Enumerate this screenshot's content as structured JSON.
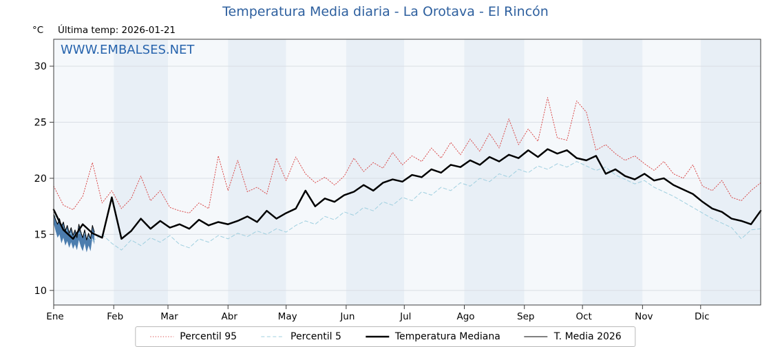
{
  "header": {
    "title": "Temperatura Media diaria - La Orotava - El Rincón",
    "y_unit": "°C",
    "last_temp_label": "Última temp: 2026-01-21",
    "watermark": "WWW.EMBALSES.NET"
  },
  "chart_data": {
    "type": "line",
    "title": "Temperatura Media diaria - La Orotava - El Rincón",
    "x_unit": "day_of_year",
    "days_in_year": 365,
    "ylim": [
      8.7,
      32.4
    ],
    "yticks": [
      10,
      15,
      20,
      25,
      30
    ],
    "month_labels": [
      "Ene",
      "Feb",
      "Mar",
      "Abr",
      "May",
      "Jun",
      "Jul",
      "Ago",
      "Sep",
      "Oct",
      "Nov",
      "Dic"
    ],
    "month_start_days": [
      0,
      31,
      59,
      90,
      120,
      151,
      181,
      212,
      243,
      273,
      304,
      334
    ],
    "band_colors": [
      "#f5f8fb",
      "#e8eff6"
    ],
    "grid_color": "#d9dee4",
    "axis_color": "#3c3c3c",
    "series": [
      {
        "name": "Percentil 95",
        "color": "#d94a4a",
        "style": "dotted",
        "width": 1,
        "x_step_days": 5,
        "values": [
          19.3,
          17.6,
          17.2,
          18.4,
          21.4,
          17.8,
          18.9,
          17.3,
          18.2,
          20.2,
          18.0,
          18.9,
          17.4,
          17.1,
          16.9,
          17.8,
          17.3,
          22.0,
          18.9,
          21.6,
          18.8,
          19.2,
          18.6,
          21.8,
          19.8,
          21.9,
          20.4,
          19.6,
          20.1,
          19.4,
          20.2,
          21.8,
          20.6,
          21.4,
          20.9,
          22.3,
          21.2,
          22.0,
          21.5,
          22.7,
          21.8,
          23.2,
          22.1,
          23.5,
          22.4,
          24.0,
          22.7,
          25.3,
          23.0,
          24.4,
          23.3,
          27.2,
          23.6,
          23.4,
          26.9,
          25.9,
          22.5,
          23.0,
          22.2,
          21.6,
          22.0,
          21.3,
          20.7,
          21.5,
          20.4,
          20.0,
          21.2,
          19.3,
          18.9,
          19.8,
          18.3,
          18.0,
          18.9,
          19.6
        ]
      },
      {
        "name": "Percentil 5",
        "color": "#9fcfdf",
        "style": "dashed",
        "width": 1,
        "x_step_days": 5,
        "values": [
          16.8,
          15.6,
          14.9,
          15.2,
          14.4,
          15.0,
          14.2,
          13.6,
          14.5,
          14.0,
          14.7,
          14.3,
          14.9,
          14.1,
          13.8,
          14.6,
          14.3,
          14.9,
          14.6,
          15.1,
          14.8,
          15.3,
          15.0,
          15.5,
          15.2,
          15.8,
          16.2,
          15.9,
          16.6,
          16.3,
          17.0,
          16.7,
          17.4,
          17.1,
          17.9,
          17.6,
          18.3,
          18.0,
          18.8,
          18.5,
          19.2,
          18.9,
          19.6,
          19.3,
          20.0,
          19.7,
          20.4,
          20.1,
          20.8,
          20.5,
          21.1,
          20.8,
          21.3,
          21.0,
          21.5,
          21.1,
          20.7,
          21.0,
          20.3,
          19.9,
          19.5,
          19.8,
          19.2,
          18.8,
          18.4,
          17.9,
          17.4,
          16.9,
          16.4,
          16.0,
          15.6,
          14.6,
          15.4,
          15.5
        ]
      },
      {
        "name": "Temperatura Mediana",
        "color": "#000000",
        "style": "solid",
        "width": 2.5,
        "x_step_days": 5,
        "values": [
          17.2,
          15.4,
          14.6,
          15.9,
          15.1,
          14.7,
          18.3,
          14.6,
          15.3,
          16.4,
          15.5,
          16.2,
          15.6,
          15.9,
          15.5,
          16.3,
          15.8,
          16.1,
          15.9,
          16.2,
          16.6,
          16.1,
          17.1,
          16.4,
          16.9,
          17.3,
          18.9,
          17.5,
          18.2,
          17.9,
          18.5,
          18.8,
          19.4,
          18.9,
          19.6,
          19.9,
          19.7,
          20.3,
          20.1,
          20.8,
          20.5,
          21.2,
          21.0,
          21.6,
          21.2,
          21.9,
          21.5,
          22.1,
          21.8,
          22.5,
          21.9,
          22.6,
          22.2,
          22.5,
          21.8,
          21.6,
          22.0,
          20.4,
          20.8,
          20.2,
          19.9,
          20.4,
          19.8,
          20.0,
          19.4,
          19.0,
          18.6,
          17.9,
          17.3,
          17.0,
          16.4,
          16.2,
          15.9,
          17.1
        ]
      },
      {
        "name": "T. Media 2026",
        "color": "#000000",
        "style": "solid",
        "width": 1,
        "x_step_days": 1,
        "values": [
          16.8,
          16.3,
          15.9,
          16.4,
          15.7,
          16.1,
          15.3,
          15.8,
          15.1,
          15.6,
          14.9,
          15.4,
          14.7,
          15.9,
          15.2,
          14.7,
          15.4,
          14.5,
          15.1,
          14.6,
          15.8,
          15.2
        ]
      }
    ],
    "band_2026": {
      "color": "#3a6fa5",
      "opacity": 0.9,
      "x_step_days": 1,
      "high": [
        16.8,
        16.3,
        15.9,
        16.4,
        15.7,
        16.1,
        15.3,
        15.8,
        15.1,
        15.6,
        14.9,
        15.4,
        14.7,
        15.9,
        15.2,
        14.7,
        15.4,
        14.5,
        15.1,
        14.6,
        15.8,
        15.2
      ],
      "low": [
        16.0,
        15.3,
        14.7,
        15.0,
        14.2,
        14.7,
        14.0,
        14.4,
        13.8,
        14.3,
        13.7,
        14.1,
        13.6,
        14.5,
        13.9,
        13.5,
        14.2,
        13.4,
        14.0,
        13.5,
        14.7,
        14.1
      ]
    },
    "legend_position": "bottom-center",
    "grid": true
  }
}
